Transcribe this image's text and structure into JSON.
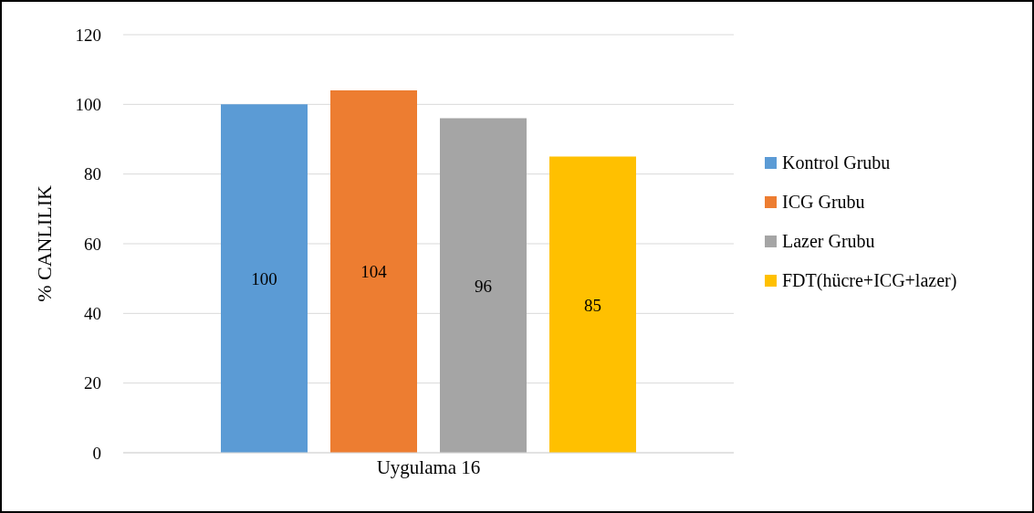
{
  "chart_data": {
    "type": "bar",
    "ylabel": "% CANLILIK",
    "categories": [
      "Uygulama 16"
    ],
    "series": [
      {
        "name": "Kontrol Grubu",
        "color": "#5b9bd5",
        "values": [
          100
        ]
      },
      {
        "name": "ICG Grubu",
        "color": "#ed7d31",
        "values": [
          104
        ]
      },
      {
        "name": "Lazer Grubu",
        "color": "#a5a5a5",
        "values": [
          96
        ]
      },
      {
        "name": "FDT(hücre+ICG+lazer)",
        "color": "#ffc000",
        "values": [
          85
        ]
      }
    ],
    "ylim": [
      0,
      120
    ],
    "yticks": [
      0,
      20,
      40,
      60,
      80,
      100,
      120
    ],
    "grid": "y",
    "legend": "right",
    "data_labels": true
  }
}
